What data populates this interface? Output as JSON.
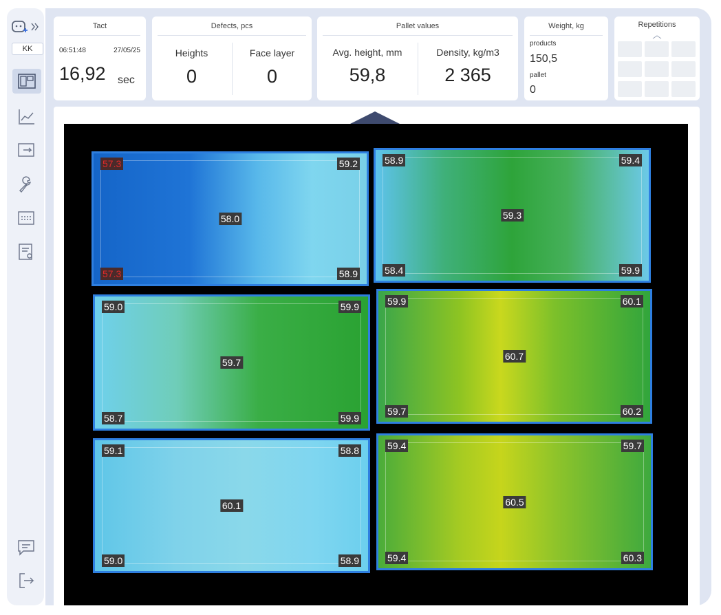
{
  "sidebar": {
    "user": "KK"
  },
  "tact": {
    "title": "Tact",
    "time": "06:51:48",
    "date": "27/05/25",
    "value": "16,92",
    "unit": "sec"
  },
  "defects": {
    "title": "Defects, pcs",
    "items": [
      {
        "label": "Heights",
        "value": "0"
      },
      {
        "label": "Face layer",
        "value": "0"
      }
    ]
  },
  "pallet": {
    "title": "Pallet values",
    "items": [
      {
        "label": "Avg. height, mm",
        "value": "59,8"
      },
      {
        "label": "Density, kg/m3",
        "value": "2 365"
      }
    ]
  },
  "weight": {
    "title": "Weight, kg",
    "items": [
      {
        "label": "products",
        "value": "150,5"
      },
      {
        "label": "pallet",
        "value": "0"
      }
    ]
  },
  "repetitions": {
    "title": "Repetitions"
  },
  "heightmap": {
    "tiles": [
      {
        "top_left": "57.3",
        "top_right": "59.2",
        "center": "58.0",
        "bottom_left": "57.3",
        "bottom_right": "58.9"
      },
      {
        "top_left": "58.9",
        "top_right": "59.4",
        "center": "59.3",
        "bottom_left": "58.4",
        "bottom_right": "59.9"
      },
      {
        "top_left": "59.0",
        "top_right": "59.9",
        "center": "59.7",
        "bottom_left": "58.7",
        "bottom_right": "59.9"
      },
      {
        "top_left": "59.9",
        "top_right": "60.1",
        "center": "60.7",
        "bottom_left": "59.7",
        "bottom_right": "60.2"
      },
      {
        "top_left": "59.1",
        "top_right": "58.8",
        "center": "60.1",
        "bottom_left": "59.0",
        "bottom_right": "58.9"
      },
      {
        "top_left": "59.4",
        "top_right": "59.7",
        "center": "60.5",
        "bottom_left": "59.4",
        "bottom_right": "60.3"
      }
    ]
  }
}
